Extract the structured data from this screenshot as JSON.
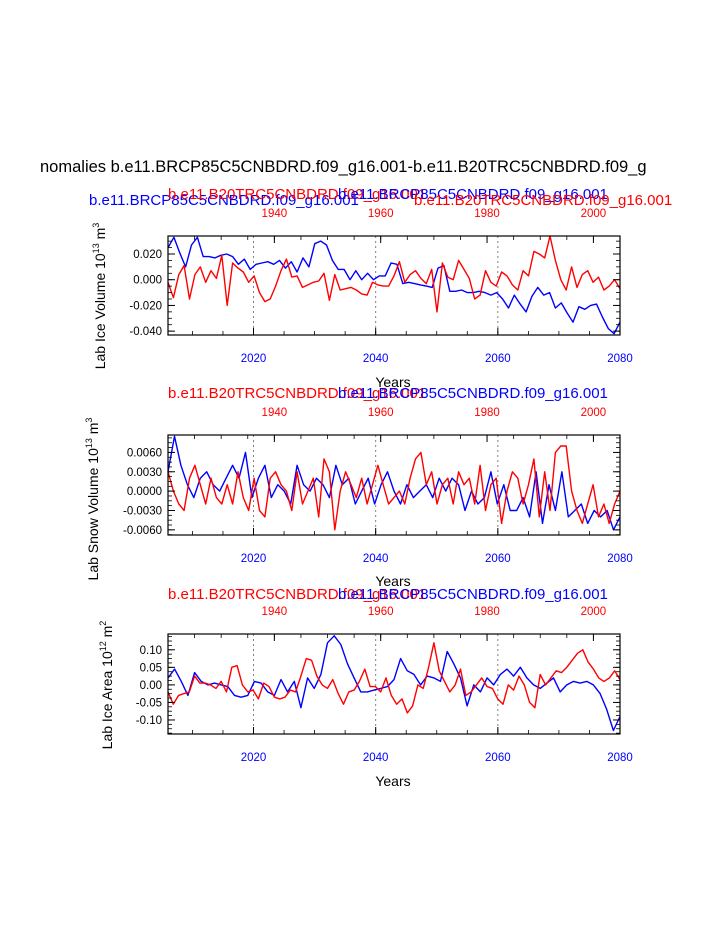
{
  "figure_title": "nomalies b.e11.BRCP85C5CNBDRD.f09_g16.001-b.e11.B20TRC5CNBDRD.f09_g",
  "colors": {
    "blue": "#0000ff",
    "red": "#ff0000",
    "axis": "#000000",
    "grid": "#808080"
  },
  "chart_data": [
    {
      "type": "line",
      "panel": "top",
      "ylabel": "Lab Ice Volume 10",
      "ylabel_exp": "13",
      "ylabel_unit": "m",
      "ylabel_unit_exp": "3",
      "xlabel": "Years",
      "top_labels": [
        {
          "text": "b.e11.BRCP85C5CNBDRD.f09_g16.001",
          "color": "blue"
        },
        {
          "text": "b.e11.B20TRC5CNBDRD.f09_g16.001",
          "color": "red"
        },
        {
          "text": "b.e11.BRCP85C5CNBDRD.f09_g16.001",
          "color": "blue"
        },
        {
          "text": "b.e11.B20TRC5CNBDRD.f09_g16.001",
          "color": "red"
        }
      ],
      "ylim": [
        -0.043,
        0.034
      ],
      "yticks": [
        -0.04,
        -0.02,
        0.0,
        0.02
      ],
      "ytick_labels": [
        "-0.040",
        "-0.020",
        "0.000",
        "0.020"
      ],
      "xlim_bottom": [
        2006,
        2080
      ],
      "xticks_bottom": [
        "2020",
        "2040",
        "2060",
        "2080"
      ],
      "xlim_top": [
        1920,
        2005
      ],
      "xticks_top": [
        "1940",
        "1960",
        "1980",
        "2000"
      ],
      "vlines": [
        2020,
        2040,
        2060
      ],
      "series": [
        {
          "name": "b.e11.BRCP85C5CNBDRD.f09_g16.001",
          "color": "blue",
          "values": [
            0.025,
            0.033,
            0.021,
            0.01,
            0.027,
            0.033,
            0.018,
            0.018,
            0.017,
            0.019,
            0.02,
            0.018,
            0.012,
            0.016,
            0.008,
            0.012,
            0.013,
            0.014,
            0.012,
            0.015,
            0.009,
            0.014,
            0.006,
            0.017,
            0.01,
            0.028,
            0.03,
            0.027,
            0.015,
            0.008,
            0.008,
            0.0,
            0.007,
            0.0,
            0.005,
            0.0,
            0.003,
            0.003,
            0.013,
            0.012,
            -0.003,
            -0.002,
            -0.003,
            -0.004,
            -0.005,
            -0.006,
            0.009,
            0.011,
            -0.009,
            -0.009,
            -0.008,
            -0.01,
            -0.01,
            -0.009,
            -0.01,
            -0.012,
            -0.01,
            -0.015,
            -0.022,
            -0.012,
            -0.019,
            -0.025,
            -0.013,
            -0.006,
            -0.012,
            -0.01,
            -0.022,
            -0.018,
            -0.026,
            -0.033,
            -0.021,
            -0.023,
            -0.02,
            -0.019,
            -0.029,
            -0.038,
            -0.042,
            -0.033
          ]
        },
        {
          "name": "b.e11.B20TRC5CNBDRD.f09_g16.001",
          "color": "red",
          "values": [
            -0.002,
            -0.014,
            0.004,
            0.011,
            -0.015,
            0.004,
            0.01,
            -0.002,
            0.007,
            0.001,
            0.019,
            -0.02,
            0.013,
            0.009,
            0.006,
            -0.002,
            0.003,
            -0.01,
            -0.017,
            -0.015,
            -0.005,
            0.007,
            0.016,
            0.002,
            0.003,
            -0.006,
            -0.004,
            -0.002,
            -0.001,
            0.005,
            -0.016,
            0.004,
            -0.008,
            -0.007,
            -0.006,
            -0.008,
            -0.011,
            -0.012,
            -0.002,
            -0.004,
            -0.005,
            -0.005,
            0.003,
            0.014,
            -0.002,
            0.004,
            0.007,
            0.001,
            -0.003,
            0.008,
            -0.025,
            0.013,
            0.002,
            0.0,
            0.015,
            0.008,
            0.001,
            -0.015,
            -0.012,
            0.007,
            -0.002,
            -0.005,
            0.006,
            0.003,
            -0.004,
            -0.008,
            0.007,
            0.003,
            0.022,
            0.02,
            0.017,
            0.034,
            0.015,
            0.0,
            -0.008,
            0.01,
            -0.006,
            0.004,
            0.007,
            -0.002,
            0.002,
            -0.008,
            -0.005,
            0.0,
            -0.007
          ]
        }
      ]
    },
    {
      "type": "line",
      "panel": "middle",
      "ylabel": "Lab Snow Volume 10",
      "ylabel_exp": "13",
      "ylabel_unit": "m",
      "ylabel_unit_exp": "3",
      "xlabel": "Years",
      "top_labels": [
        {
          "text": "b.e11.B20TRC5CNBDRD.f09_g16.001",
          "color": "red"
        },
        {
          "text": "b.e11.BRCP85C5CNBDRD.f09_g16.001",
          "color": "blue"
        }
      ],
      "ylim": [
        -0.0068,
        0.0087
      ],
      "yticks": [
        -0.006,
        -0.003,
        0.0,
        0.003,
        0.006
      ],
      "ytick_labels": [
        "-0.0060",
        "-0.0030",
        "0.0000",
        "0.0030",
        "0.0060"
      ],
      "xlim_bottom": [
        2006,
        2080
      ],
      "xticks_bottom": [
        "2020",
        "2040",
        "2060",
        "2080"
      ],
      "xlim_top": [
        1920,
        2005
      ],
      "xticks_top": [
        "1940",
        "1960",
        "1980",
        "2000"
      ],
      "vlines": [
        2020,
        2040,
        2060
      ],
      "series": [
        {
          "name": "b.e11.BRCP85C5CNBDRD.f09_g16.001",
          "color": "blue",
          "values": [
            0.003,
            0.0085,
            0.004,
            0.001,
            -0.001,
            0.002,
            0.003,
            0.001,
            0.0,
            0.002,
            0.004,
            0.002,
            0.006,
            -0.001,
            0.002,
            0.004,
            -0.001,
            0.001,
            0.0,
            -0.002,
            0.004,
            0.001,
            0.0,
            0.002,
            0.001,
            -0.001,
            0.004,
            0.001,
            0.002,
            -0.002,
            0.0,
            0.002,
            -0.002,
            0.001,
            0.003,
            0.0,
            -0.002,
            0.001,
            -0.001,
            0.0,
            0.001,
            -0.001,
            0.002,
            0.0,
            0.002,
            0.001,
            -0.003,
            0.0,
            -0.002,
            -0.001,
            0.003,
            -0.002,
            0.001,
            -0.003,
            -0.003,
            -0.001,
            -0.004,
            0.003,
            -0.005,
            0.001,
            -0.003,
            0.003,
            -0.004,
            -0.003,
            -0.002,
            -0.005,
            -0.003,
            -0.004,
            -0.003,
            -0.006,
            -0.004
          ]
        },
        {
          "name": "b.e11.B20TRC5CNBDRD.f09_g16.001",
          "color": "red",
          "values": [
            0.003,
            0.0,
            -0.002,
            -0.003,
            0.002,
            0.004,
            0.001,
            -0.002,
            0.002,
            -0.001,
            -0.002,
            0.001,
            -0.002,
            0.003,
            -0.001,
            -0.003,
            0.002,
            -0.003,
            -0.004,
            0.002,
            0.003,
            0.001,
            0.0,
            -0.003,
            0.003,
            -0.002,
            0.0,
            0.002,
            -0.004,
            0.005,
            0.003,
            -0.006,
            0.0,
            0.003,
            0.001,
            -0.001,
            0.002,
            -0.002,
            0.001,
            0.004,
            0.001,
            -0.002,
            -0.001,
            0.0,
            -0.002,
            0.002,
            0.005,
            0.006,
            0.001,
            0.003,
            -0.002,
            0.001,
            0.002,
            -0.002,
            0.003,
            0.001,
            0.002,
            -0.002,
            0.004,
            -0.003,
            0.001,
            0.002,
            -0.005,
            0.0,
            0.003,
            0.002,
            -0.002,
            0.001,
            0.005,
            -0.004,
            0.003,
            -0.003,
            0.006,
            0.007,
            0.007,
            0.0,
            -0.003,
            -0.005,
            -0.002,
            0.001,
            -0.004,
            -0.002,
            -0.005,
            -0.002,
            0.0
          ]
        }
      ]
    },
    {
      "type": "line",
      "panel": "bottom",
      "ylabel": "Lab Ice Area 10",
      "ylabel_exp": "12",
      "ylabel_unit": "m",
      "ylabel_unit_exp": "2",
      "xlabel": "Years",
      "top_labels": [
        {
          "text": "b.e11.B20TRC5CNBDRD.f09_g16.001",
          "color": "red"
        },
        {
          "text": "b.e11.BRCP85C5CNBDRD.f09_g16.001",
          "color": "blue"
        }
      ],
      "ylim": [
        -0.14,
        0.145
      ],
      "yticks": [
        -0.1,
        -0.05,
        0.0,
        0.05,
        0.1
      ],
      "ytick_labels": [
        "-0.10",
        "-0.05",
        "0.00",
        "0.05",
        "0.10"
      ],
      "xlim_bottom": [
        2006,
        2080
      ],
      "xticks_bottom": [
        "2020",
        "2040",
        "2060",
        "2080"
      ],
      "xlim_top": [
        1920,
        2005
      ],
      "xticks_top": [
        "1940",
        "1960",
        "1980",
        "2000"
      ],
      "vlines": [
        2020,
        2040,
        2060
      ],
      "series": [
        {
          "name": "b.e11.BRCP85C5CNBDRD.f09_g16.001",
          "color": "blue",
          "values": [
            0.02,
            0.045,
            0.01,
            -0.03,
            0.035,
            0.01,
            0.0,
            0.005,
            0.0,
            -0.005,
            -0.03,
            -0.035,
            -0.03,
            0.01,
            0.005,
            -0.02,
            -0.03,
            0.015,
            -0.02,
            0.01,
            -0.065,
            0.02,
            -0.01,
            0.03,
            0.12,
            0.14,
            0.115,
            0.06,
            0.02,
            -0.02,
            -0.02,
            -0.015,
            -0.01,
            -0.005,
            0.015,
            0.075,
            0.04,
            0.03,
            0.0,
            0.025,
            0.02,
            0.01,
            0.095,
            0.06,
            0.02,
            -0.06,
            0.0,
            -0.02,
            0.02,
            0.0,
            0.03,
            0.045,
            0.025,
            0.05,
            0.02,
            0.0,
            -0.01,
            0.005,
            0.02,
            -0.02,
            0.0,
            0.01,
            0.005,
            0.01,
            0.0,
            -0.025,
            -0.07,
            -0.13,
            -0.09
          ]
        },
        {
          "name": "b.e11.B20TRC5CNBDRD.f09_g16.001",
          "color": "red",
          "values": [
            -0.02,
            -0.055,
            -0.03,
            -0.025,
            -0.02,
            0.025,
            0.005,
            0.005,
            0.0,
            -0.01,
            0.01,
            -0.02,
            0.05,
            0.055,
            0.0,
            -0.02,
            -0.015,
            -0.04,
            0.005,
            -0.005,
            -0.035,
            -0.04,
            -0.035,
            -0.015,
            -0.02,
            0.025,
            0.075,
            0.07,
            0.025,
            0.0,
            -0.01,
            0.015,
            -0.025,
            -0.055,
            -0.02,
            -0.015,
            0.01,
            0.045,
            -0.005,
            -0.005,
            -0.02,
            0.02,
            -0.03,
            -0.055,
            -0.04,
            -0.08,
            -0.06,
            0.0,
            -0.01,
            0.05,
            0.12,
            0.04,
            0.01,
            -0.02,
            0.0,
            0.045,
            -0.03,
            -0.02,
            0.0,
            0.02,
            -0.005,
            -0.01,
            -0.04,
            -0.055,
            0.0,
            -0.015,
            0.025,
            0.0,
            -0.05,
            -0.065,
            0.03,
            0.0,
            0.02,
            0.04,
            0.035,
            0.05,
            0.07,
            0.09,
            0.1,
            0.065,
            0.045,
            0.02,
            0.01,
            0.02,
            0.04,
            0.015
          ]
        }
      ]
    }
  ]
}
